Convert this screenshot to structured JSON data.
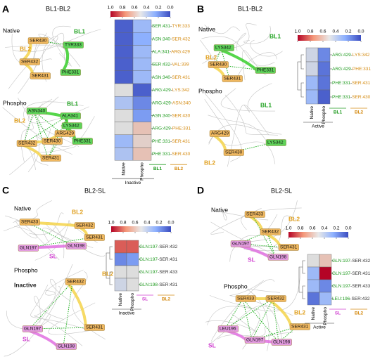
{
  "colorbar_ticks": [
    {
      "value": 1,
      "label": "1.0"
    },
    {
      "value": 0.8,
      "label": "0.8"
    },
    {
      "value": 0.6,
      "label": "0.6"
    },
    {
      "value": 0.4,
      "label": "0.4"
    },
    {
      "value": 0.2,
      "label": "0.2"
    },
    {
      "value": 0,
      "label": "0.0"
    }
  ],
  "separator": "-",
  "panels": [
    {
      "letter": "A",
      "title": "BL1-BL2",
      "columns": [
        "Native",
        "Phospho"
      ],
      "state": "Inactive",
      "res1_color": "#1f9a1f",
      "res2_color": "#d48a10",
      "groups": [
        {
          "name": "BL1",
          "color": "#1f9a1f"
        },
        {
          "name": "BL2",
          "color": "#d48a10"
        }
      ],
      "rows": [
        {
          "res1": "SER:431",
          "res2": "TYR:333",
          "values": [
            0.05,
            0.3
          ]
        },
        {
          "res1": "ASN:340",
          "res2": "SER:432",
          "values": [
            0.05,
            0.25
          ]
        },
        {
          "res1": "ALA:341",
          "res2": "ARG:429",
          "values": [
            0.05,
            0.3
          ]
        },
        {
          "res1": "SER:432",
          "res2": "VAL:339",
          "values": [
            0.05,
            0.3
          ]
        },
        {
          "res1": "ASN:340",
          "res2": "SER:431",
          "values": [
            0.05,
            0.3
          ]
        },
        {
          "res1": "ARG:429",
          "res2": "LYS:342",
          "values": [
            0.5,
            0.05
          ]
        },
        {
          "res1": "ARG:429",
          "res2": "ASN:340",
          "values": [
            0.35,
            0.15
          ]
        },
        {
          "res1": "ASN:340",
          "res2": "SER:430",
          "values": [
            0.5,
            0.2
          ]
        },
        {
          "res1": "ARG:429",
          "res2": "PHE:331",
          "values": [
            0.5,
            0.6
          ]
        },
        {
          "res1": "PHE:331",
          "res2": "SER:431",
          "values": [
            0.3,
            0.55
          ]
        },
        {
          "res1": "PHE:331",
          "res2": "SER:430",
          "values": [
            0.35,
            0.6
          ]
        }
      ],
      "images": [
        {
          "heading": "Native",
          "labels": [
            {
              "text": "BL1",
              "color": "#2aa62a",
              "boxed": false
            },
            {
              "text": "BL2",
              "color": "#e0a020",
              "boxed": false
            },
            {
              "text": "SER430",
              "color": "#f0b860",
              "boxed": true
            },
            {
              "text": "SER432",
              "color": "#f0b860",
              "boxed": true
            },
            {
              "text": "SER431",
              "color": "#f0b860",
              "boxed": true
            },
            {
              "text": "TYR333",
              "color": "#5fd35a",
              "boxed": true
            },
            {
              "text": "PHE331",
              "color": "#5fd35a",
              "boxed": true
            }
          ]
        },
        {
          "heading": "Phospho",
          "labels": [
            {
              "text": "BL1",
              "color": "#2aa62a",
              "boxed": false
            },
            {
              "text": "BL2",
              "color": "#e0a020",
              "boxed": false
            },
            {
              "text": "ASN340",
              "color": "#5fd35a",
              "boxed": true
            },
            {
              "text": "ALA341",
              "color": "#5fd35a",
              "boxed": true
            },
            {
              "text": "LYS342",
              "color": "#5fd35a",
              "boxed": true
            },
            {
              "text": "ARG429",
              "color": "#f0b860",
              "boxed": true
            },
            {
              "text": "SER430",
              "color": "#f0b860",
              "boxed": true
            },
            {
              "text": "SER432",
              "color": "#f0b860",
              "boxed": true
            },
            {
              "text": "SER431",
              "color": "#f0b860",
              "boxed": true
            },
            {
              "text": "PHE331",
              "color": "#5fd35a",
              "boxed": true
            }
          ]
        }
      ]
    },
    {
      "letter": "B",
      "title": "BL1-BL2",
      "columns": [
        "Native",
        "Phospho"
      ],
      "state": "Active",
      "res1_color": "#1f9a1f",
      "res2_color": "#d48a10",
      "groups": [
        {
          "name": "BL1",
          "color": "#1f9a1f"
        },
        {
          "name": "BL2",
          "color": "#d48a10"
        }
      ],
      "rows": [
        {
          "res1": "ARG:429",
          "res2": "LYS:342",
          "values": [
            0.45,
            0.15
          ]
        },
        {
          "res1": "ARG:429",
          "res2": "PHE:331",
          "values": [
            0.45,
            0.1
          ]
        },
        {
          "res1": "PHE:331",
          "res2": "SER:431",
          "values": [
            0.3,
            0.1
          ]
        },
        {
          "res1": "PHE:331",
          "res2": "SER:430",
          "values": [
            0.3,
            0.05
          ]
        }
      ],
      "images": [
        {
          "heading": "Native",
          "labels": [
            {
              "text": "BL1",
              "color": "#2aa62a",
              "boxed": false
            },
            {
              "text": "BL2",
              "color": "#e0a020",
              "boxed": false
            },
            {
              "text": "LYS342",
              "color": "#5fd35a",
              "boxed": true
            },
            {
              "text": "SER430",
              "color": "#f0b860",
              "boxed": true
            },
            {
              "text": "SER431",
              "color": "#f0b860",
              "boxed": true
            },
            {
              "text": "PHE331",
              "color": "#5fd35a",
              "boxed": true
            }
          ]
        },
        {
          "heading": "Phospho",
          "labels": [
            {
              "text": "BL1",
              "color": "#2aa62a",
              "boxed": false
            },
            {
              "text": "BL2",
              "color": "#e0a020",
              "boxed": false
            },
            {
              "text": "ARG429",
              "color": "#f0b860",
              "boxed": true
            },
            {
              "text": "LYS342",
              "color": "#5fd35a",
              "boxed": true
            },
            {
              "text": "SER430",
              "color": "#f0b860",
              "boxed": true
            }
          ]
        }
      ]
    },
    {
      "letter": "C",
      "title": "BL2-SL",
      "columns": [
        "Native",
        "Phospho"
      ],
      "state": "Inactive",
      "res1_color": "#1f9a1f",
      "res2_color": "#333333",
      "groups": [
        {
          "name": "SL",
          "color": "#d040d0"
        },
        {
          "name": "BL2",
          "color": "#d48a10"
        }
      ],
      "rows": [
        {
          "res1": "GLN:197",
          "res2": "SER:432",
          "values": [
            0.85,
            0.85
          ]
        },
        {
          "res1": "GLN:197",
          "res2": "SER:431",
          "values": [
            0.15,
            0.2
          ]
        },
        {
          "res1": "GLN:197",
          "res2": "SER:433",
          "values": [
            0.5,
            0.5
          ]
        },
        {
          "res1": "GLN:198",
          "res2": "SER:431",
          "values": [
            0.45,
            0.5
          ]
        }
      ],
      "images": [
        {
          "heading": "Native",
          "labels": [
            {
              "text": "BL2",
              "color": "#e0a020",
              "boxed": false
            },
            {
              "text": "SL",
              "color": "#d040d0",
              "boxed": false
            },
            {
              "text": "SER433",
              "color": "#f0b860",
              "boxed": true
            },
            {
              "text": "SER432",
              "color": "#f0b860",
              "boxed": true
            },
            {
              "text": "SER431",
              "color": "#f0b860",
              "boxed": true
            },
            {
              "text": "GLN197",
              "color": "#e39be0",
              "boxed": true
            },
            {
              "text": "GLN198",
              "color": "#e39be0",
              "boxed": true
            }
          ]
        },
        {
          "heading": "Phospho",
          "labels": [
            {
              "text": "Inactive",
              "color": "#222222",
              "boxed": false
            },
            {
              "text": "BL2",
              "color": "#e0a020",
              "boxed": false
            },
            {
              "text": "SL",
              "color": "#d040d0",
              "boxed": false
            },
            {
              "text": "SER432",
              "color": "#f0b860",
              "boxed": true
            },
            {
              "text": "GLN197",
              "color": "#e39be0",
              "boxed": true
            },
            {
              "text": "SER431",
              "color": "#f0b860",
              "boxed": true
            },
            {
              "text": "GLN198",
              "color": "#e39be0",
              "boxed": true
            }
          ]
        }
      ]
    },
    {
      "letter": "D",
      "title": "BL2-SL",
      "columns": [
        "Native",
        "Phospho"
      ],
      "state": "Active",
      "res1_color": "#1f9a1f",
      "res2_color": "#333333",
      "groups": [
        {
          "name": "SL",
          "color": "#d040d0"
        },
        {
          "name": "BL2",
          "color": "#d48a10"
        }
      ],
      "rows": [
        {
          "res1": "GLN:197",
          "res2": "SER:432",
          "values": [
            0.5,
            0.6
          ]
        },
        {
          "res1": "GLN:197",
          "res2": "SER:431",
          "values": [
            0.3,
            1.0
          ]
        },
        {
          "res1": "GLN:197",
          "res2": "SER:433",
          "values": [
            0.3,
            0.15
          ]
        },
        {
          "res1": "LEU:196",
          "res2": "SER:432",
          "values": [
            0.1,
            0.3
          ]
        }
      ],
      "images": [
        {
          "heading": "Native",
          "labels": [
            {
              "text": "BL2",
              "color": "#e0a020",
              "boxed": false
            },
            {
              "text": "SL",
              "color": "#d040d0",
              "boxed": false
            },
            {
              "text": "SER433",
              "color": "#f0b860",
              "boxed": true
            },
            {
              "text": "SER432",
              "color": "#f0b860",
              "boxed": true
            },
            {
              "text": "SER431",
              "color": "#f0b860",
              "boxed": true
            },
            {
              "text": "GLN197",
              "color": "#e39be0",
              "boxed": true
            },
            {
              "text": "GLN198",
              "color": "#e39be0",
              "boxed": true
            }
          ]
        },
        {
          "heading": "Phospho",
          "labels": [
            {
              "text": "SER433",
              "color": "#f0b860",
              "boxed": true
            },
            {
              "text": "SER432",
              "color": "#f0b860",
              "boxed": true
            },
            {
              "text": "LEU196",
              "color": "#e39be0",
              "boxed": true
            },
            {
              "text": "GLN197",
              "color": "#e39be0",
              "boxed": true
            },
            {
              "text": "GLN198",
              "color": "#e39be0",
              "boxed": true
            },
            {
              "text": "SER431",
              "color": "#f0b860",
              "boxed": true
            },
            {
              "text": "BL2",
              "color": "#e0a020",
              "boxed": false
            },
            {
              "text": "SL",
              "color": "#d040d0",
              "boxed": false
            }
          ]
        }
      ]
    }
  ]
}
